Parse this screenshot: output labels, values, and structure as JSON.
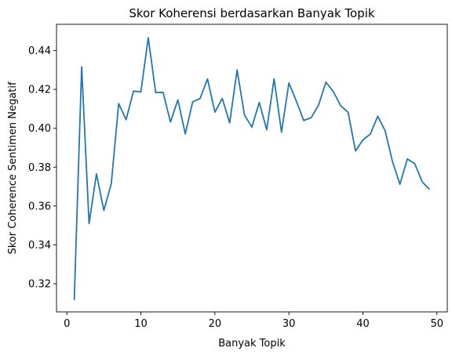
{
  "chart_data": {
    "type": "line",
    "title": "Skor Koherensi berdasarkan Banyak Topik",
    "xlabel": "Banyak Topik",
    "ylabel": "Skor Coherence Sentimen Negatif",
    "xlim": [
      -1.4,
      51.4
    ],
    "ylim": [
      0.3055,
      0.4535
    ],
    "xticks": [
      0,
      10,
      20,
      30,
      40,
      50
    ],
    "xtick_labels": [
      "0",
      "10",
      "20",
      "30",
      "40",
      "50"
    ],
    "yticks": [
      0.32,
      0.34,
      0.36,
      0.38,
      0.4,
      0.42,
      0.44
    ],
    "ytick_labels": [
      "0.32",
      "0.34",
      "0.36",
      "0.38",
      "0.40",
      "0.42",
      "0.44"
    ],
    "grid": false,
    "legend": "none",
    "line_color": "#1f77b4",
    "series": [
      {
        "x": [
          1,
          2,
          3,
          4,
          5,
          6,
          7,
          8,
          9,
          10,
          11,
          12,
          13,
          14,
          15,
          16,
          17,
          18,
          19,
          20,
          21,
          22,
          23,
          24,
          25,
          26,
          27,
          28,
          29,
          30,
          31,
          32,
          33,
          34,
          35,
          36,
          37,
          38,
          39,
          40,
          41,
          42,
          43,
          44,
          45,
          46,
          47,
          48,
          49
        ],
        "values": [
          0.3116,
          0.4316,
          0.351,
          0.3765,
          0.3577,
          0.3715,
          0.4127,
          0.4044,
          0.4191,
          0.4187,
          0.4466,
          0.4184,
          0.4185,
          0.4032,
          0.4146,
          0.3971,
          0.4136,
          0.4153,
          0.4254,
          0.4083,
          0.4153,
          0.4028,
          0.43,
          0.4068,
          0.4006,
          0.4133,
          0.3992,
          0.4254,
          0.398,
          0.4233,
          0.414,
          0.404,
          0.4054,
          0.4118,
          0.4237,
          0.4189,
          0.4116,
          0.4082,
          0.3883,
          0.394,
          0.397,
          0.4062,
          0.3987,
          0.3828,
          0.3712,
          0.3842,
          0.3818,
          0.3725,
          0.3685
        ]
      }
    ]
  }
}
